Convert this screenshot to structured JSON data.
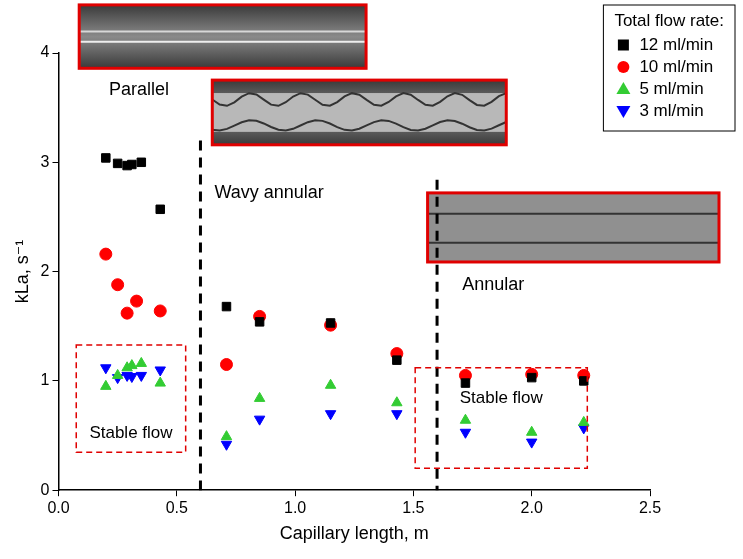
{
  "chart_data": {
    "type": "scatter",
    "xlabel": "Capillary length, m",
    "ylabel": "kLa, s⁻¹",
    "xlim": [
      0,
      2.5
    ],
    "xticks": [
      {
        "value": 0,
        "label": "0.0"
      },
      {
        "value": 0.5,
        "label": "0.5"
      },
      {
        "value": 1,
        "label": "1.0"
      },
      {
        "value": 1.5,
        "label": "1.5"
      },
      {
        "value": 2,
        "label": "2.0"
      },
      {
        "value": 2.5,
        "label": "2.5"
      }
    ],
    "ylim": [
      0,
      4
    ],
    "yticks": [
      0,
      1,
      2,
      3,
      4
    ],
    "grid": false,
    "legend": "upper right",
    "legend_title": "Total flow rate:",
    "region_labels": [
      "Parallel",
      "Wavy annular",
      "Annular"
    ],
    "boundaries": [
      0.6,
      1.6
    ],
    "annotations": [
      "Stable flow",
      "Stable flow"
    ],
    "series": [
      {
        "name": "12 ml/min",
        "color": "#000000",
        "marker": "square",
        "x": [
          0.2,
          0.25,
          0.29,
          0.31,
          0.35,
          0.43,
          0.71,
          0.85,
          1.15,
          1.43,
          1.72,
          2.0,
          2.22
        ],
        "values": [
          3.04,
          2.99,
          2.97,
          2.98,
          3.0,
          2.57,
          1.68,
          1.54,
          1.53,
          1.19,
          0.98,
          1.03,
          1.0
        ]
      },
      {
        "name": "10 ml/min",
        "color": "#ff0000",
        "marker": "circle",
        "x": [
          0.2,
          0.25,
          0.29,
          0.33,
          0.43,
          0.71,
          0.85,
          1.15,
          1.43,
          1.72,
          2.0,
          2.22
        ],
        "values": [
          2.16,
          1.88,
          1.62,
          1.73,
          1.64,
          1.15,
          1.59,
          1.51,
          1.25,
          1.05,
          1.06,
          1.05
        ]
      },
      {
        "name": "5 ml/min",
        "color": "#33cc33",
        "marker": "triangle-up",
        "x": [
          0.2,
          0.25,
          0.29,
          0.31,
          0.35,
          0.43,
          0.71,
          0.85,
          1.15,
          1.43,
          1.72,
          2.0,
          2.22
        ],
        "values": [
          0.95,
          1.05,
          1.12,
          1.14,
          1.16,
          0.98,
          0.49,
          0.84,
          0.96,
          0.8,
          0.64,
          0.53,
          0.62
        ]
      },
      {
        "name": "3 ml/min",
        "color": "#0000ff",
        "marker": "triangle-down",
        "x": [
          0.2,
          0.25,
          0.29,
          0.31,
          0.35,
          0.43,
          0.71,
          0.85,
          1.15,
          1.43,
          1.72,
          2.0,
          2.22
        ],
        "values": [
          1.12,
          1.03,
          1.05,
          1.04,
          1.05,
          1.1,
          0.42,
          0.65,
          0.7,
          0.7,
          0.53,
          0.44,
          0.57
        ]
      }
    ]
  }
}
